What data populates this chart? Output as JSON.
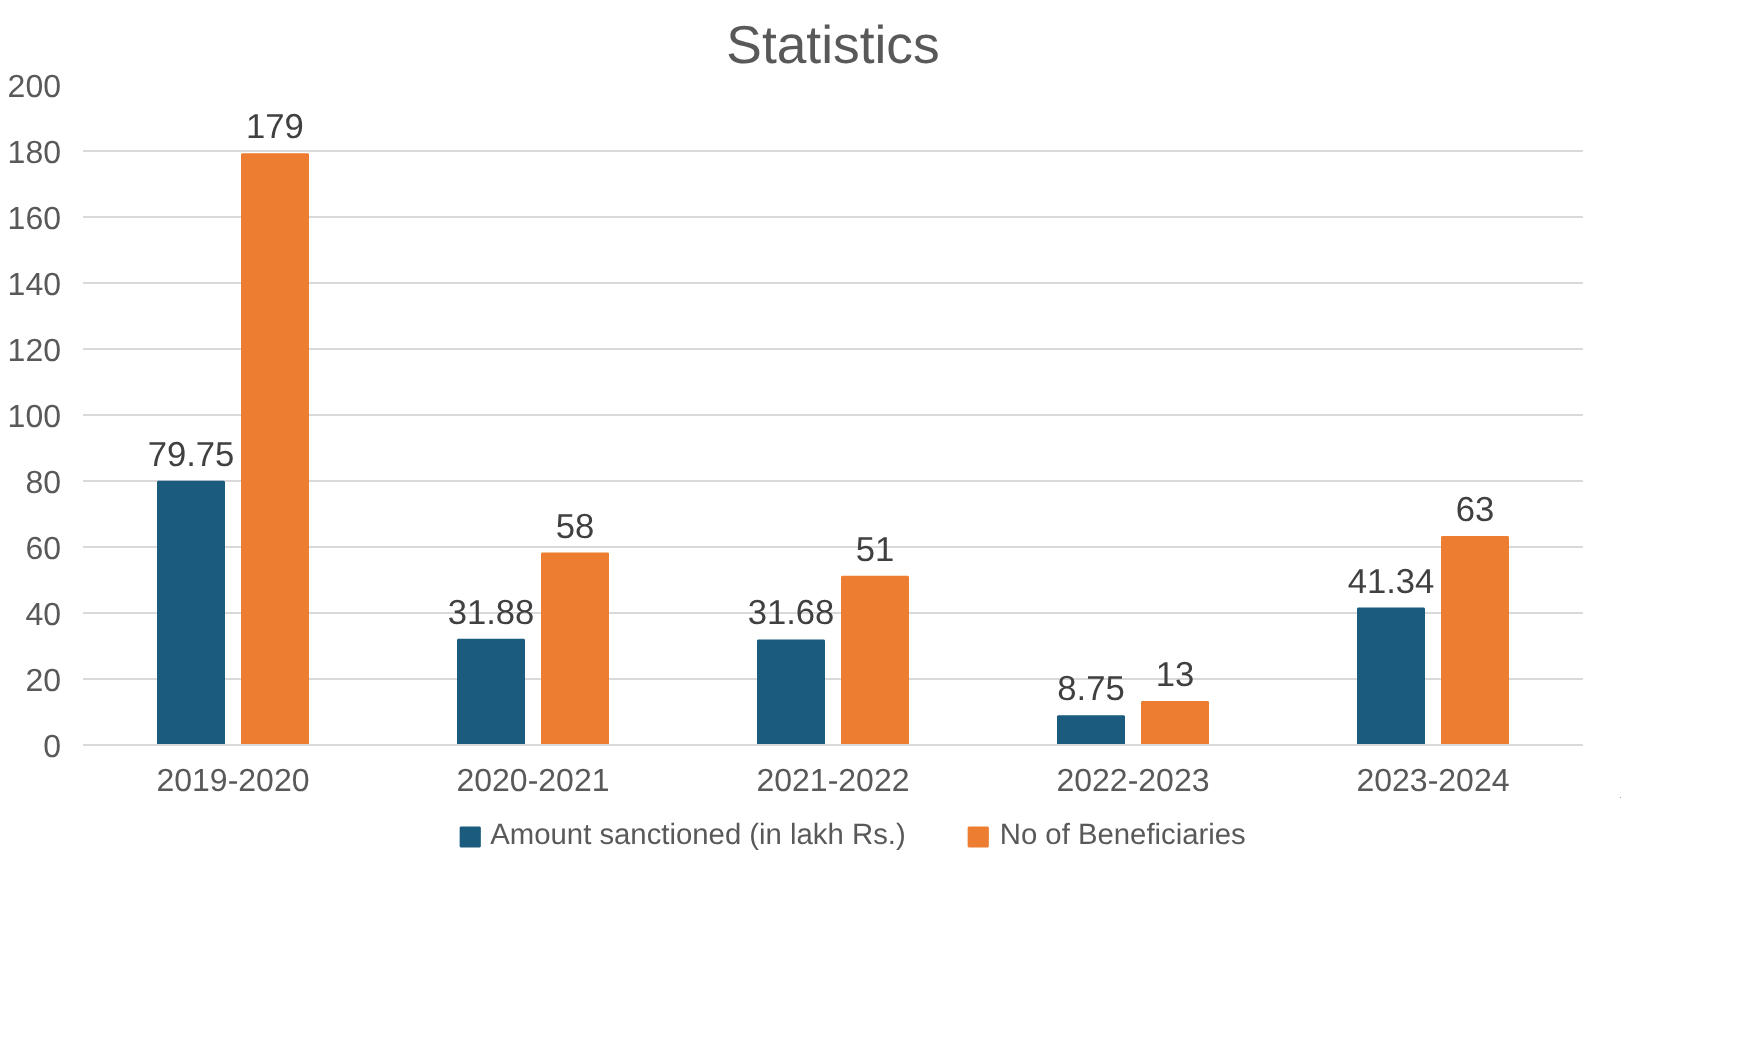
{
  "chart_data": {
    "type": "bar",
    "title": "Statistics",
    "categories": [
      "2019-2020",
      "2020-2021",
      "2021-2022",
      "2022-2023",
      "2023-2024"
    ],
    "series": [
      {
        "name": "Amount sanctioned (in lakh Rs.)",
        "color": "#1b5c7e",
        "values": [
          79.75,
          31.88,
          31.68,
          8.75,
          41.34
        ]
      },
      {
        "name": "No of Beneficiaries",
        "color": "#ed7d31",
        "values": [
          179,
          58,
          51,
          13,
          63
        ]
      }
    ],
    "ylim": [
      0,
      200
    ],
    "yticks": [
      0,
      20,
      40,
      60,
      80,
      100,
      120,
      140,
      160,
      180,
      200
    ],
    "grid": "y",
    "legend": "bottom",
    "data_labels": true
  }
}
